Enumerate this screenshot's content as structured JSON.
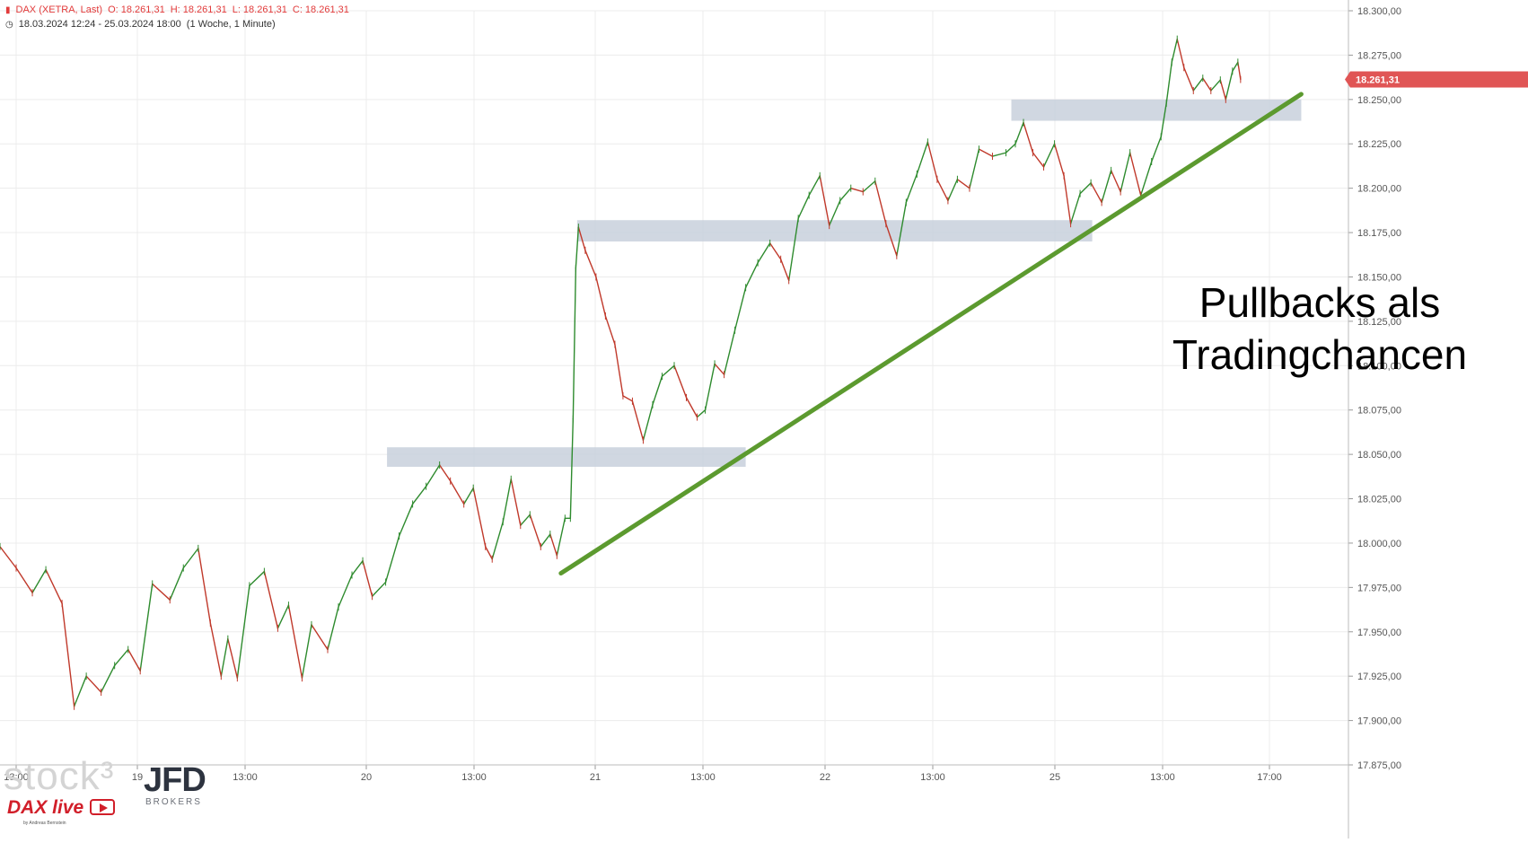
{
  "header": {
    "instrument": "DAX (XETRA, Last)",
    "open": "O: 18.261,31",
    "high": "H: 18.261,31",
    "low": "L: 18.261,31",
    "close": "C: 18.261,31",
    "range": "18.03.2024 12:24 - 25.03.2024 18:00",
    "interval": "(1 Woche, 1 Minute)"
  },
  "annotation": {
    "line1": "Pullbacks als",
    "line2": "Tradingchancen"
  },
  "watermark": {
    "stock": "stock³",
    "dax_live": "DAX live",
    "byline": "by Andreas Bernstein",
    "broker": "JFD",
    "broker_sub": "BROKERS"
  },
  "colors": {
    "up": "#2e8b2e",
    "down": "#c0392b",
    "trendline": "#5c9a2f",
    "zone": "#c8d0dc",
    "price_tag": "#e05555",
    "header_red": "#e23b3b"
  },
  "chart_data": {
    "type": "line",
    "title": "DAX (XETRA, Last)",
    "subtitle": "18.03.2024 12:24 - 25.03.2024 18:00 (1 Woche, 1 Minute)",
    "x_tick_labels": [
      "13:00",
      "19",
      "13:00",
      "20",
      "13:00",
      "21",
      "13:00",
      "22",
      "13:00",
      "25",
      "13:00",
      "17:00"
    ],
    "ylim": [
      17875,
      18300
    ],
    "y_tick_values": [
      17875,
      17900,
      17925,
      17950,
      17975,
      18000,
      18025,
      18050,
      18075,
      18100,
      18125,
      18150,
      18175,
      18200,
      18225,
      18250,
      18275,
      18300
    ],
    "y_tick_labels": [
      "17.875,00",
      "17.900,00",
      "17.925,00",
      "17.950,00",
      "17.975,00",
      "18.000,00",
      "18.025,00",
      "18.050,00",
      "18.075,00",
      "18.100,00",
      "18.125,00",
      "18.150,00",
      "18.175,00",
      "18.200,00",
      "18.225,00",
      "18.250,00",
      "18.275,00",
      "18.300,00"
    ],
    "grid": true,
    "last_price": 18261.31,
    "last_price_label": "18.261,31",
    "x_domain": [
      0,
      100
    ],
    "series": [
      {
        "points": [
          [
            0,
            17998
          ],
          [
            1.2,
            17986
          ],
          [
            2.4,
            17972
          ],
          [
            3.4,
            17985
          ],
          [
            4.6,
            17966
          ],
          [
            5.5,
            17908
          ],
          [
            6.4,
            17925
          ],
          [
            7.5,
            17916
          ],
          [
            8.5,
            17931
          ],
          [
            9.5,
            17940
          ],
          [
            10.4,
            17928
          ],
          [
            11.3,
            17977
          ],
          [
            12.6,
            17968
          ],
          [
            13.6,
            17986
          ],
          [
            14.7,
            17997
          ],
          [
            15.6,
            17955
          ],
          [
            16.4,
            17925
          ],
          [
            16.9,
            17946
          ],
          [
            17.6,
            17924
          ],
          [
            18.5,
            17976
          ],
          [
            19.6,
            17984
          ],
          [
            20.6,
            17952
          ],
          [
            21.4,
            17965
          ],
          [
            22.4,
            17924
          ],
          [
            23.1,
            17954
          ],
          [
            24.3,
            17940
          ],
          [
            25.1,
            17964
          ],
          [
            26.1,
            17982
          ],
          [
            26.9,
            17990
          ],
          [
            27.6,
            17970
          ],
          [
            28.6,
            17978
          ],
          [
            29.6,
            18004
          ],
          [
            30.6,
            18022
          ],
          [
            31.6,
            18032
          ],
          [
            32.6,
            18044
          ],
          [
            33.4,
            18035
          ],
          [
            34.4,
            18022
          ],
          [
            35.1,
            18031
          ],
          [
            36.0,
            17998
          ],
          [
            36.5,
            17991
          ],
          [
            37.3,
            18012
          ],
          [
            37.9,
            18036
          ],
          [
            38.6,
            18010
          ],
          [
            39.3,
            18016
          ],
          [
            40.1,
            17998
          ],
          [
            40.8,
            18005
          ],
          [
            41.3,
            17993
          ],
          [
            41.9,
            18014
          ],
          [
            42.3,
            18014
          ],
          [
            42.5,
            18070
          ],
          [
            42.7,
            18155
          ],
          [
            42.9,
            18178
          ],
          [
            43.4,
            18165
          ],
          [
            44.2,
            18150
          ],
          [
            44.9,
            18128
          ],
          [
            45.6,
            18112
          ],
          [
            46.2,
            18083
          ],
          [
            46.9,
            18080
          ],
          [
            47.7,
            18058
          ],
          [
            48.4,
            18078
          ],
          [
            49.1,
            18094
          ],
          [
            50.0,
            18100
          ],
          [
            50.9,
            18082
          ],
          [
            51.7,
            18071
          ],
          [
            52.3,
            18075
          ],
          [
            53.0,
            18101
          ],
          [
            53.7,
            18095
          ],
          [
            54.5,
            18120
          ],
          [
            55.3,
            18144
          ],
          [
            56.2,
            18158
          ],
          [
            57.1,
            18169
          ],
          [
            57.9,
            18160
          ],
          [
            58.5,
            18148
          ],
          [
            59.2,
            18183
          ],
          [
            60.0,
            18196
          ],
          [
            60.8,
            18207
          ],
          [
            61.5,
            18179
          ],
          [
            62.3,
            18193
          ],
          [
            63.1,
            18200
          ],
          [
            64.0,
            18198
          ],
          [
            64.9,
            18204
          ],
          [
            65.7,
            18180
          ],
          [
            66.5,
            18162
          ],
          [
            67.2,
            18192
          ],
          [
            68.0,
            18208
          ],
          [
            68.8,
            18226
          ],
          [
            69.5,
            18205
          ],
          [
            70.3,
            18193
          ],
          [
            71.0,
            18205
          ],
          [
            71.9,
            18200
          ],
          [
            72.6,
            18222
          ],
          [
            73.6,
            18218
          ],
          [
            74.6,
            18220
          ],
          [
            75.3,
            18225
          ],
          [
            75.9,
            18237
          ],
          [
            76.6,
            18220
          ],
          [
            77.4,
            18212
          ],
          [
            78.2,
            18225
          ],
          [
            78.9,
            18207
          ],
          [
            79.4,
            18180
          ],
          [
            80.1,
            18197
          ],
          [
            80.9,
            18203
          ],
          [
            81.7,
            18192
          ],
          [
            82.4,
            18210
          ],
          [
            83.1,
            18198
          ],
          [
            83.8,
            18220
          ],
          [
            84.6,
            18196
          ],
          [
            85.4,
            18215
          ],
          [
            86.1,
            18229
          ],
          [
            86.5,
            18248
          ],
          [
            86.9,
            18271
          ],
          [
            87.3,
            18284
          ],
          [
            87.8,
            18268
          ],
          [
            88.5,
            18255
          ],
          [
            89.2,
            18262
          ],
          [
            89.8,
            18255
          ],
          [
            90.5,
            18261
          ],
          [
            90.9,
            18250
          ],
          [
            91.4,
            18266
          ],
          [
            91.8,
            18271
          ],
          [
            92.0,
            18261.31
          ]
        ]
      }
    ],
    "zones": [
      {
        "x0": 28.7,
        "x1": 55.3,
        "low": 18043,
        "high": 18054
      },
      {
        "x0": 42.8,
        "x1": 81.0,
        "low": 18170,
        "high": 18182
      },
      {
        "x0": 75.0,
        "x1": 96.5,
        "low": 18238,
        "high": 18250
      }
    ],
    "trendline": {
      "x0": 41.6,
      "y0": 17983,
      "x1": 96.5,
      "y1": 18253
    },
    "annotation": "Pullbacks als Tradingchancen"
  }
}
